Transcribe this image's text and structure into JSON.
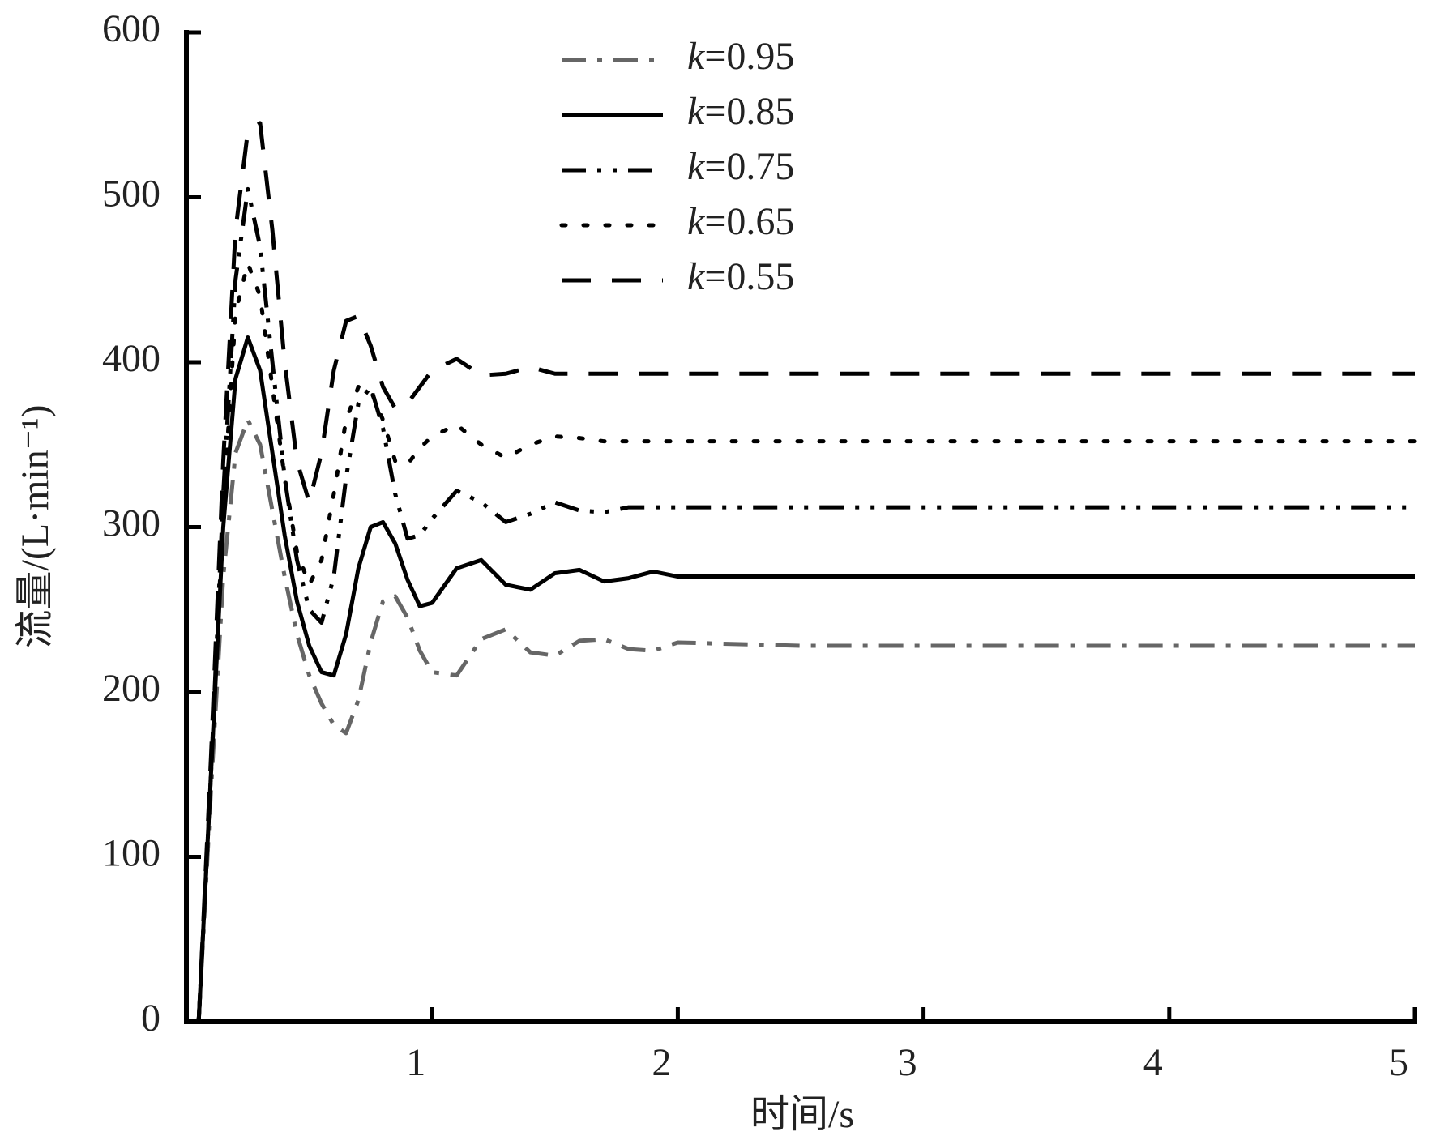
{
  "chart_data": {
    "type": "line",
    "x_label": "时间/s",
    "y_label": "流量/(L·min⁻¹)",
    "x": [
      0.05,
      0.1,
      0.15,
      0.2,
      0.25,
      0.3,
      0.35,
      0.4,
      0.45,
      0.5,
      0.55,
      0.6,
      0.65,
      0.7,
      0.75,
      0.8,
      0.85,
      0.9,
      0.95,
      1.0,
      1.1,
      1.2,
      1.3,
      1.4,
      1.5,
      1.6,
      1.7,
      1.8,
      1.9,
      2.0,
      2.5,
      3,
      4,
      5
    ],
    "series": [
      {
        "name": "k=0.95",
        "color": "#666666",
        "style": "dashdot",
        "values": [
          0,
          140,
          270,
          345,
          365,
          350,
          310,
          270,
          235,
          210,
          193,
          180,
          175,
          195,
          230,
          255,
          258,
          245,
          225,
          212,
          210,
          232,
          238,
          224,
          222,
          231,
          232,
          226,
          225,
          230,
          228,
          228,
          228,
          228
        ]
      },
      {
        "name": "k=0.85",
        "color": "#000000",
        "style": "solid",
        "values": [
          0,
          150,
          300,
          390,
          415,
          395,
          345,
          295,
          255,
          228,
          212,
          210,
          235,
          275,
          300,
          303,
          290,
          268,
          252,
          254,
          275,
          280,
          265,
          262,
          272,
          274,
          267,
          269,
          273,
          270,
          270,
          270,
          270,
          270
        ]
      },
      {
        "name": "k=0.75",
        "color": "#000000",
        "style": "dashdotdot",
        "values": [
          0,
          150,
          320,
          450,
          505,
          470,
          400,
          330,
          280,
          250,
          242,
          270,
          330,
          375,
          385,
          360,
          320,
          293,
          295,
          305,
          322,
          315,
          303,
          308,
          315,
          310,
          309,
          312,
          312,
          312,
          312,
          312,
          312,
          312
        ]
      },
      {
        "name": "k=0.65",
        "color": "#000000",
        "style": "dotted",
        "values": [
          0,
          150,
          310,
          430,
          460,
          440,
          385,
          330,
          285,
          265,
          280,
          320,
          365,
          385,
          383,
          365,
          340,
          338,
          348,
          355,
          362,
          350,
          342,
          350,
          355,
          354,
          352,
          352,
          352,
          352,
          352,
          352,
          352,
          352
        ]
      },
      {
        "name": "k=0.55",
        "color": "#000000",
        "style": "dashed",
        "values": [
          0,
          160,
          340,
          480,
          540,
          545,
          480,
          400,
          340,
          315,
          345,
          395,
          425,
          428,
          410,
          385,
          372,
          375,
          385,
          395,
          402,
          392,
          393,
          397,
          393,
          393,
          393,
          393,
          393,
          393,
          393,
          393,
          393,
          393
        ]
      }
    ],
    "xlim": [
      0,
      5
    ],
    "xticks": [
      1,
      2,
      3,
      4,
      5
    ],
    "ylim": [
      0,
      600
    ],
    "yticks": [
      0,
      100,
      200,
      300,
      400,
      500,
      600
    ],
    "legend": "top-center"
  }
}
